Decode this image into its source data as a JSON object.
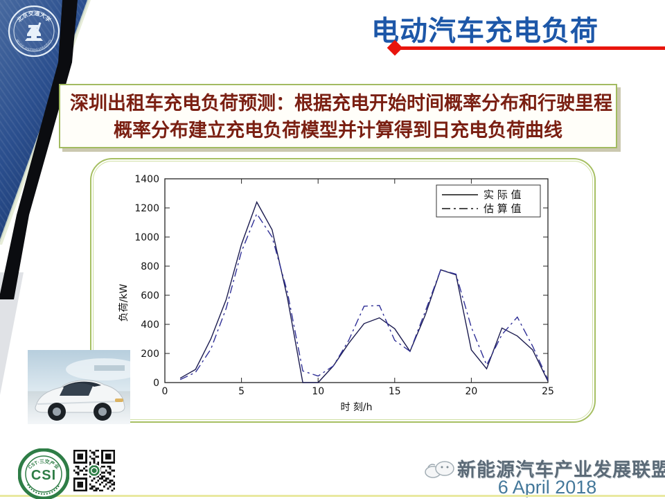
{
  "header": {
    "title": "电动汽车充电负荷",
    "title_color": "#1d57a8",
    "accent_color": "#e8150d"
  },
  "university_logo": {
    "top_arc_text": "北京交通大学",
    "bottom_arc_text": "BEIJING JIAOTONG UNIVERSITY"
  },
  "description": {
    "line1": "深圳出租车充电负荷预测：根据充电开始时间概率分布和行驶里程",
    "line2": "概率分布建立充电负荷模型并计算得到日充电负荷曲线",
    "text_color": "#7a1f12",
    "border_color": "#a2bb61"
  },
  "chart_data": {
    "type": "line",
    "title": "",
    "xlabel": "时 刻/h",
    "ylabel": "负荷/kW",
    "xlim": [
      0,
      25
    ],
    "ylim": [
      0,
      1400
    ],
    "xticks": [
      0,
      5,
      10,
      15,
      20,
      25
    ],
    "yticks": [
      0,
      200,
      400,
      600,
      800,
      1000,
      1200,
      1400
    ],
    "grid": false,
    "legend_position": "top-right",
    "x": [
      1,
      2,
      3,
      4,
      5,
      6,
      7,
      8,
      9,
      10,
      11,
      12,
      13,
      14,
      15,
      16,
      17,
      18,
      19,
      20,
      21,
      22,
      23,
      24,
      25
    ],
    "series": [
      {
        "name": "实际值",
        "label": "实 际 值",
        "line_style": "solid",
        "color": "#1b1b4f",
        "values": [
          30,
          90,
          300,
          570,
          950,
          1240,
          1050,
          580,
          0,
          0,
          115,
          270,
          405,
          445,
          370,
          215,
          465,
          775,
          740,
          225,
          95,
          375,
          320,
          225,
          10
        ]
      },
      {
        "name": "估算值",
        "label": "估 算 值",
        "line_style": "dash-dot",
        "color": "#2f2f96",
        "values": [
          20,
          70,
          230,
          510,
          900,
          1160,
          1000,
          620,
          80,
          45,
          115,
          290,
          525,
          530,
          290,
          215,
          490,
          775,
          745,
          380,
          120,
          330,
          450,
          250,
          20
        ]
      }
    ]
  },
  "footer": {
    "alliance": "新能源汽车产业发展联盟",
    "date": "6 April 2018",
    "csi_center_text": "CSI",
    "csi_ring_text": "CST·三交产业"
  }
}
